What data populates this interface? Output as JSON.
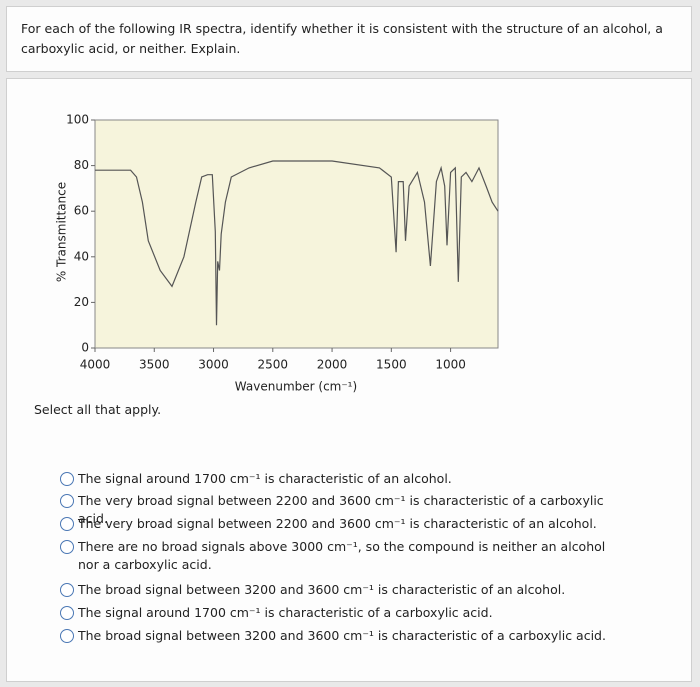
{
  "question": "For each of the following IR spectra, identify whether it is consistent with the structure of an alcohol, a carboxylic acid, or neither. Explain.",
  "chart_data": {
    "type": "line",
    "xlabel": "Wavenumber (cm⁻¹)",
    "ylabel": "% Transmittance",
    "color": "#555555",
    "plot_background": "#f6f4dc",
    "x": [
      4000,
      3700,
      3650,
      3600,
      3550,
      3450,
      3350,
      3250,
      3150,
      3100,
      3050,
      3010,
      2985,
      2975,
      2965,
      2950,
      2935,
      2900,
      2850,
      2700,
      2500,
      2000,
      1600,
      1500,
      1460,
      1440,
      1400,
      1380,
      1350,
      1280,
      1220,
      1170,
      1120,
      1080,
      1050,
      1030,
      1000,
      960,
      935,
      910,
      870,
      820,
      760,
      700,
      650,
      600
    ],
    "values": [
      78,
      78,
      75,
      64,
      47,
      34,
      27,
      40,
      64,
      75,
      76,
      76,
      51,
      10,
      38,
      34,
      50,
      64,
      75,
      79,
      82,
      82,
      79,
      75,
      42,
      73,
      73,
      47,
      71,
      77,
      64,
      36,
      73,
      79,
      71,
      45,
      77,
      79,
      29,
      75,
      77,
      73,
      79,
      71,
      64,
      60
    ],
    "xlim": [
      4000,
      600
    ],
    "ylim": [
      0,
      100
    ],
    "xticks": [
      4000,
      3500,
      3000,
      2500,
      2000,
      1500,
      1000
    ],
    "yticks": [
      0,
      20,
      40,
      60,
      80,
      100
    ]
  },
  "instruction": "Select all that apply.",
  "options": [
    "The signal around 1700 cm⁻¹ is characteristic of an alcohol.",
    "The very broad signal between 2200 and 3600 cm⁻¹ is characteristic of a carboxylic acid.",
    "The very broad signal between 2200 and 3600 cm⁻¹ is characteristic of an alcohol.",
    "There are no broad signals above 3000 cm⁻¹, so the compound is neither an alcohol nor a carboxylic acid.",
    "The broad signal between 3200 and 3600 cm⁻¹ is characteristic of an alcohol.",
    "The signal around 1700 cm⁻¹ is characteristic of a carboxylic acid.",
    "The broad signal between 3200 and 3600 cm⁻¹ is characteristic of a carboxylic acid."
  ]
}
